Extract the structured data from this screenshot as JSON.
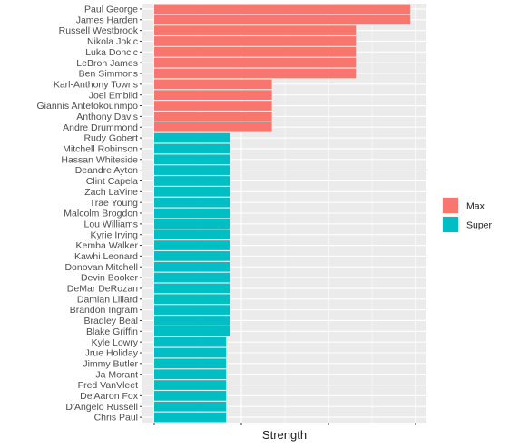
{
  "chart_data": {
    "type": "bar",
    "orientation": "horizontal",
    "title": "",
    "xlabel": "Strength",
    "ylabel": "",
    "xlim": [
      0,
      1
    ],
    "grid": true,
    "legend_position": "right",
    "categories": [
      "Paul George",
      "James Harden",
      "Russell Westbrook",
      "Nikola Jokic",
      "Luka Doncic",
      "LeBron James",
      "Ben Simmons",
      "Karl-Anthony Towns",
      "Joel Embiid",
      "Giannis Antetokounmpo",
      "Anthony Davis",
      "Andre Drummond",
      "Rudy Gobert",
      "Mitchell Robinson",
      "Hassan Whiteside",
      "Deandre Ayton",
      "Clint Capela",
      "Zach LaVine",
      "Trae Young",
      "Malcolm Brogdon",
      "Lou Williams",
      "Kyrie Irving",
      "Kemba Walker",
      "Kawhi Leonard",
      "Donovan Mitchell",
      "Devin Booker",
      "DeMar DeRozan",
      "Damian Lillard",
      "Brandon Ingram",
      "Bradley Beal",
      "Blake Griffin",
      "Kyle Lowry",
      "Jrue Holiday",
      "Jimmy Butler",
      "Ja Morant",
      "Fred VanVleet",
      "De'Aaron Fox",
      "D'Angelo Russell",
      "Chris Paul"
    ],
    "values": [
      0.98,
      0.98,
      0.772,
      0.772,
      0.772,
      0.772,
      0.772,
      0.45,
      0.45,
      0.45,
      0.45,
      0.45,
      0.29,
      0.29,
      0.29,
      0.29,
      0.29,
      0.29,
      0.29,
      0.29,
      0.29,
      0.29,
      0.29,
      0.29,
      0.29,
      0.29,
      0.29,
      0.29,
      0.29,
      0.29,
      0.29,
      0.275,
      0.275,
      0.275,
      0.275,
      0.275,
      0.275,
      0.275,
      0.275
    ],
    "groups": [
      "Max",
      "Max",
      "Max",
      "Max",
      "Max",
      "Max",
      "Max",
      "Max",
      "Max",
      "Max",
      "Max",
      "Max",
      "Super",
      "Super",
      "Super",
      "Super",
      "Super",
      "Super",
      "Super",
      "Super",
      "Super",
      "Super",
      "Super",
      "Super",
      "Super",
      "Super",
      "Super",
      "Super",
      "Super",
      "Super",
      "Super",
      "Super",
      "Super",
      "Super",
      "Super",
      "Super",
      "Super",
      "Super",
      "Super"
    ],
    "legend": [
      {
        "name": "Max",
        "color": "#F8766D"
      },
      {
        "name": "Super",
        "color": "#00BFC4"
      }
    ],
    "panel_background": "#EBEBEB",
    "grid_color": "#FFFFFF"
  }
}
